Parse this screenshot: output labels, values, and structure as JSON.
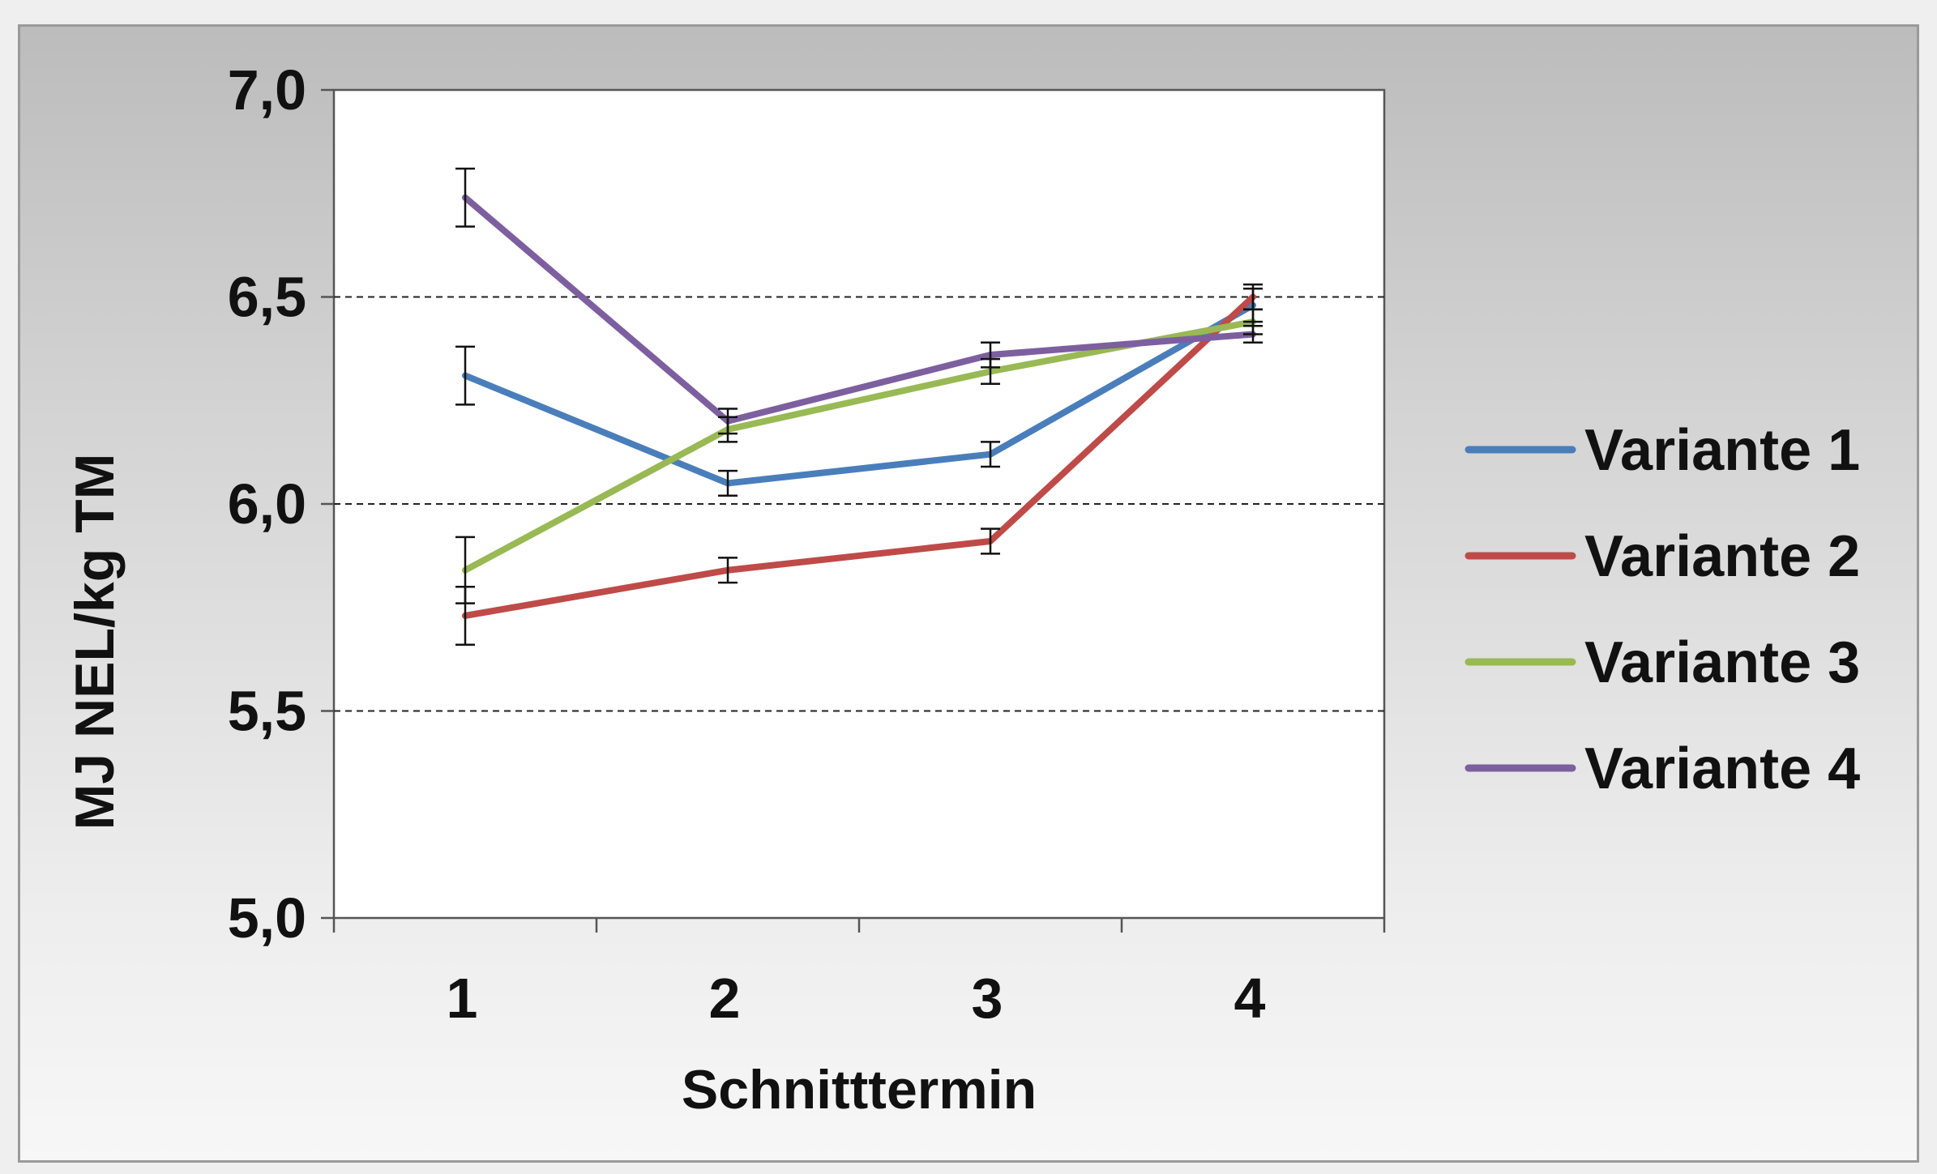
{
  "chart_data": {
    "type": "line",
    "xlabel": "Schnitttermin",
    "ylabel": "MJ NEL/kg TM",
    "categories": [
      "1",
      "2",
      "3",
      "4"
    ],
    "ylim": [
      5.0,
      7.0
    ],
    "yticks": [
      "5,0",
      "5,5",
      "6,0",
      "6,5",
      "7,0"
    ],
    "ytick_values": [
      5.0,
      5.5,
      6.0,
      6.5,
      7.0
    ],
    "gridlines": [
      5.5,
      6.0,
      6.5
    ],
    "grid": "dashed horizontal",
    "legend_position": "right",
    "series": [
      {
        "name": "Variante 1",
        "color": "#4a7ebb",
        "values": [
          6.31,
          6.05,
          6.12,
          6.48
        ],
        "errors": [
          0.07,
          0.03,
          0.03,
          0.04
        ]
      },
      {
        "name": "Variante 2",
        "color": "#be4b48",
        "values": [
          5.73,
          5.84,
          5.91,
          6.5
        ],
        "errors": [
          0.07,
          0.03,
          0.03,
          0.03
        ]
      },
      {
        "name": "Variante 3",
        "color": "#98b954",
        "values": [
          5.84,
          6.18,
          6.32,
          6.44
        ],
        "errors": [
          0.08,
          0.03,
          0.03,
          0.03
        ]
      },
      {
        "name": "Variante 4",
        "color": "#7d5fa0",
        "values": [
          6.74,
          6.2,
          6.36,
          6.41
        ],
        "errors": [
          0.07,
          0.03,
          0.03,
          0.02
        ]
      }
    ]
  }
}
